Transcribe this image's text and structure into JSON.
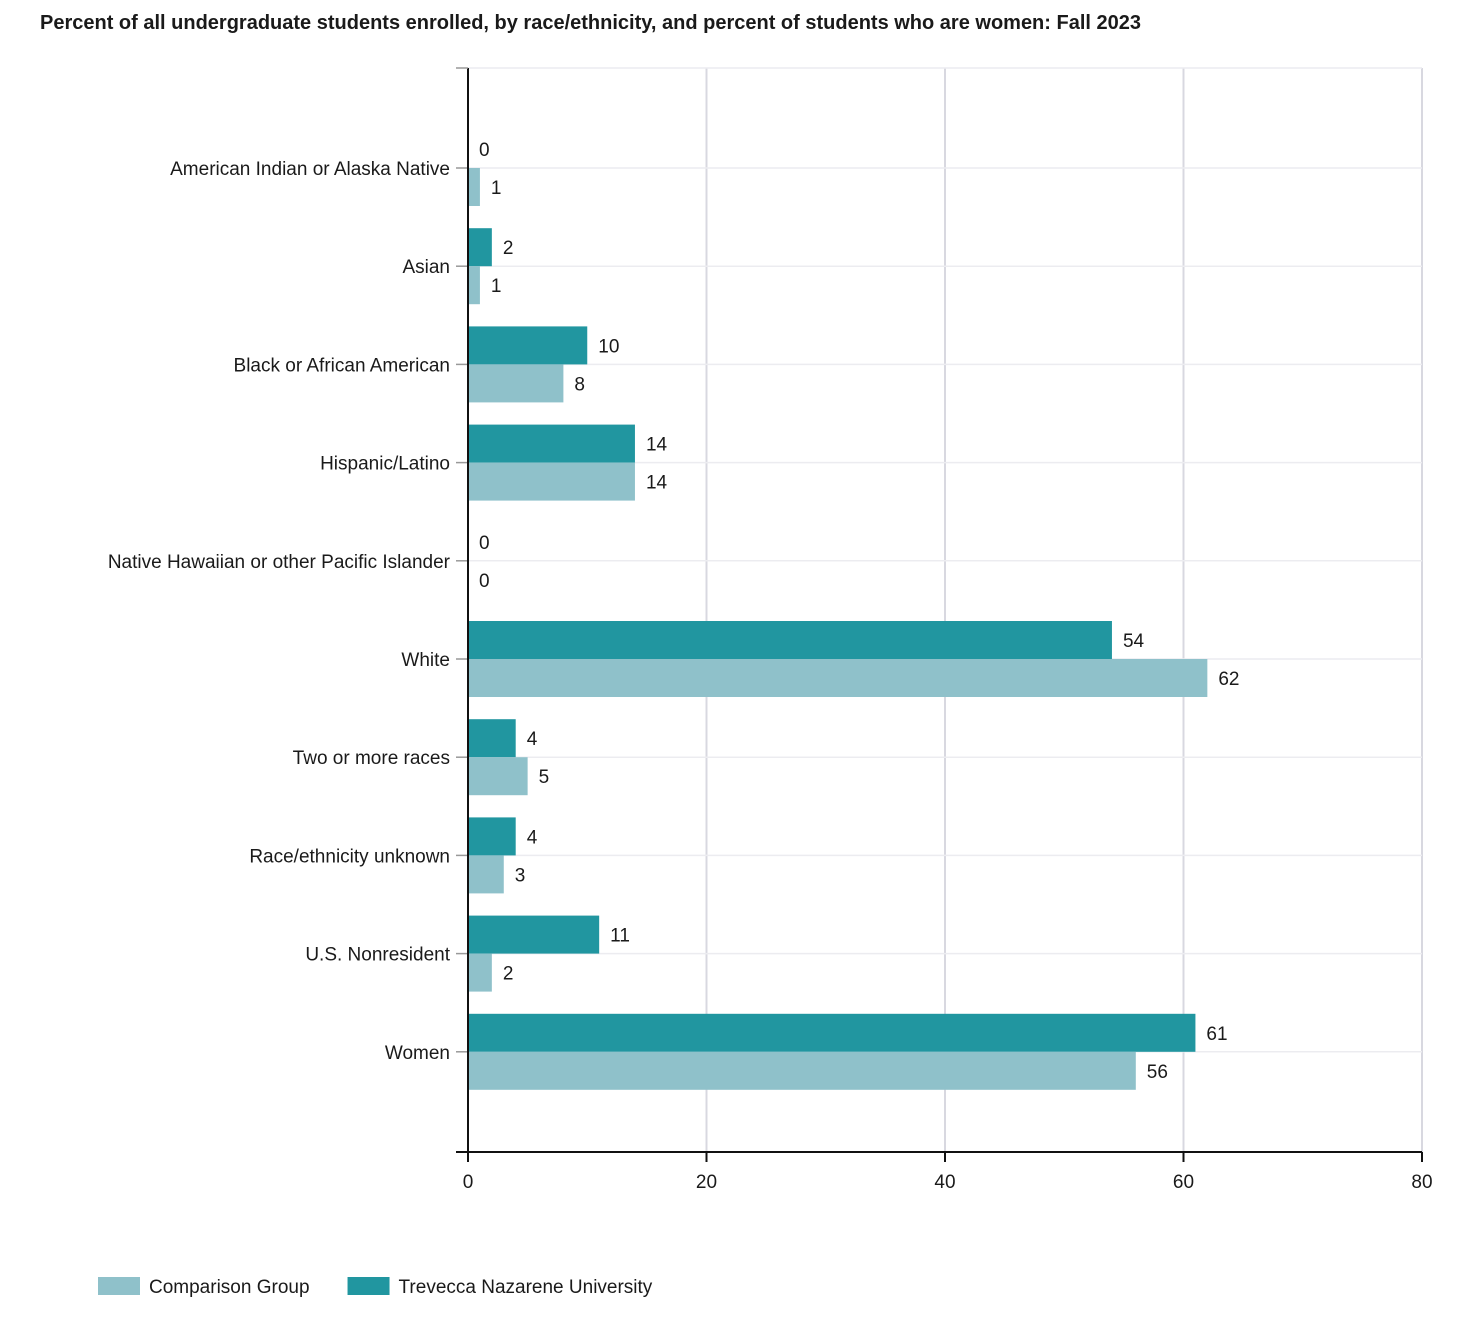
{
  "colors": {
    "trevecca": "#2196a0",
    "comparison": "#8fc1ca",
    "grid": "#d8d8e0",
    "axis": "#111111"
  },
  "chart_data": {
    "type": "bar",
    "orientation": "horizontal",
    "title": "Percent of all undergraduate students enrolled, by race/ethnicity, and percent of students who are women: Fall 2023",
    "categories": [
      "American Indian or Alaska Native",
      "Asian",
      "Black or African American",
      "Hispanic/Latino",
      "Native Hawaiian or other Pacific Islander",
      "White",
      "Two or more races",
      "Race/ethnicity unknown",
      "U.S. Nonresident",
      "Women"
    ],
    "series": [
      {
        "name": "Trevecca Nazarene University",
        "color": "#2196a0",
        "values": [
          0,
          2,
          10,
          14,
          0,
          54,
          4,
          4,
          11,
          61
        ]
      },
      {
        "name": "Comparison Group",
        "color": "#8fc1ca",
        "values": [
          1,
          1,
          8,
          14,
          0,
          62,
          5,
          3,
          2,
          56
        ]
      }
    ],
    "xlim": [
      0,
      80
    ],
    "xticks": [
      0,
      20,
      40,
      60,
      80
    ],
    "grid": true,
    "legend": {
      "position": "bottom-left",
      "order": [
        "Comparison Group",
        "Trevecca Nazarene University"
      ]
    }
  }
}
